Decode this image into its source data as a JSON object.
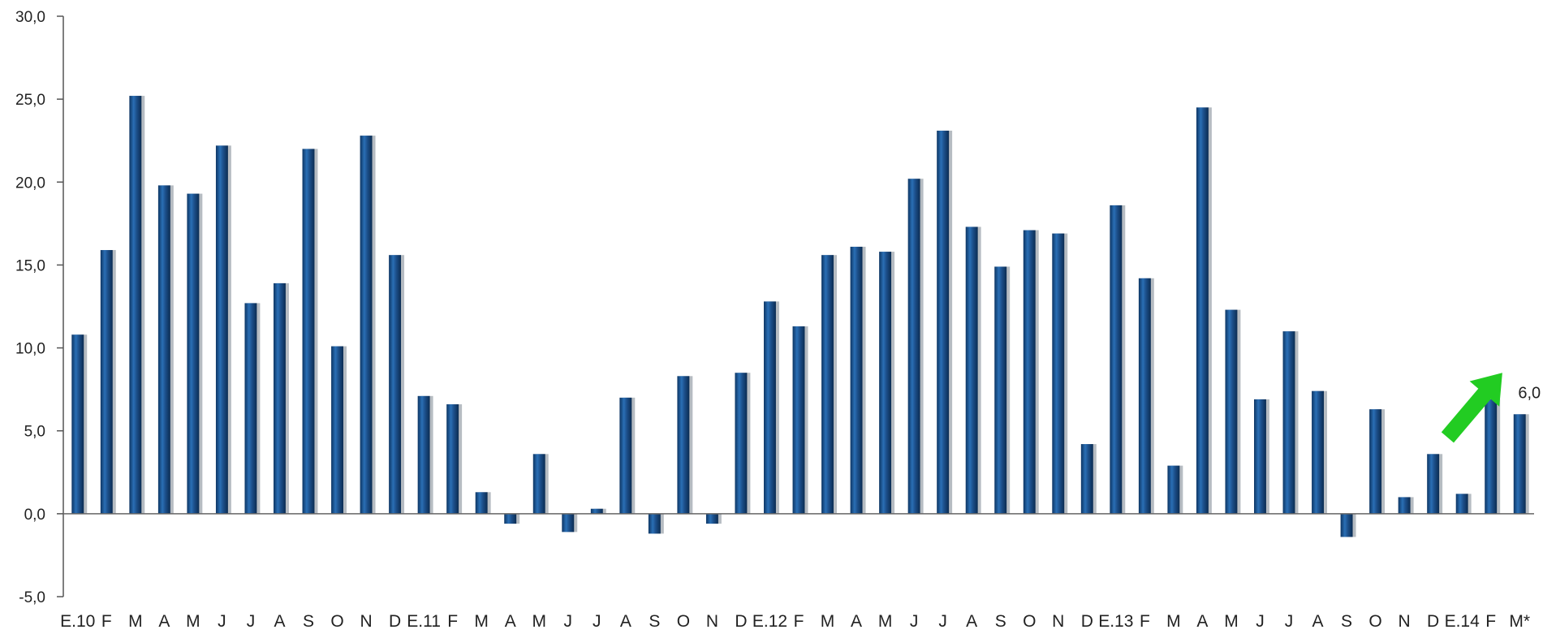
{
  "chart_data": {
    "type": "bar",
    "title": "",
    "xlabel": "",
    "ylabel": "",
    "ylim": [
      -5,
      30
    ],
    "yticks": [
      -5,
      0,
      5,
      10,
      15,
      20,
      25,
      30
    ],
    "ytick_labels": [
      "-5,0",
      "0,0",
      "5,0",
      "10,0",
      "15,0",
      "20,0",
      "25,0",
      "30,0"
    ],
    "grid": false,
    "legend": "none",
    "bar_color": "#1c4f8a",
    "arrow_color": "#22cc22",
    "categories": [
      "E.10",
      "F",
      "M",
      "A",
      "M",
      "J",
      "J",
      "A",
      "S",
      "O",
      "N",
      "D",
      "E.11",
      "F",
      "M",
      "A",
      "M",
      "J",
      "J",
      "A",
      "S",
      "O",
      "N",
      "D",
      "E.12",
      "F",
      "M",
      "A",
      "M",
      "J",
      "J",
      "A",
      "S",
      "O",
      "N",
      "D",
      "E.13",
      "F",
      "M",
      "A",
      "M",
      "J",
      "J",
      "A",
      "S",
      "O",
      "N",
      "D",
      "E.14",
      "F",
      "M*"
    ],
    "values": [
      10.8,
      15.9,
      25.2,
      19.8,
      19.3,
      22.2,
      12.7,
      13.9,
      22.0,
      10.1,
      22.8,
      15.6,
      7.1,
      6.6,
      1.3,
      -0.6,
      3.6,
      -1.1,
      0.3,
      7.0,
      -1.2,
      8.3,
      -0.6,
      8.5,
      12.8,
      11.3,
      15.6,
      16.1,
      15.8,
      20.2,
      23.1,
      17.3,
      14.9,
      17.1,
      16.9,
      4.2,
      18.6,
      14.2,
      2.9,
      24.5,
      12.3,
      6.9,
      11.0,
      7.4,
      -1.4,
      6.3,
      1.0,
      3.6,
      1.2,
      6.9,
      6.0
    ],
    "annotations": [
      {
        "category_index": 50,
        "text": "6,0"
      }
    ],
    "trend_arrow": {
      "from_index": 47.5,
      "from_value": 4.6,
      "to_index": 49.4,
      "to_value": 8.5
    }
  }
}
